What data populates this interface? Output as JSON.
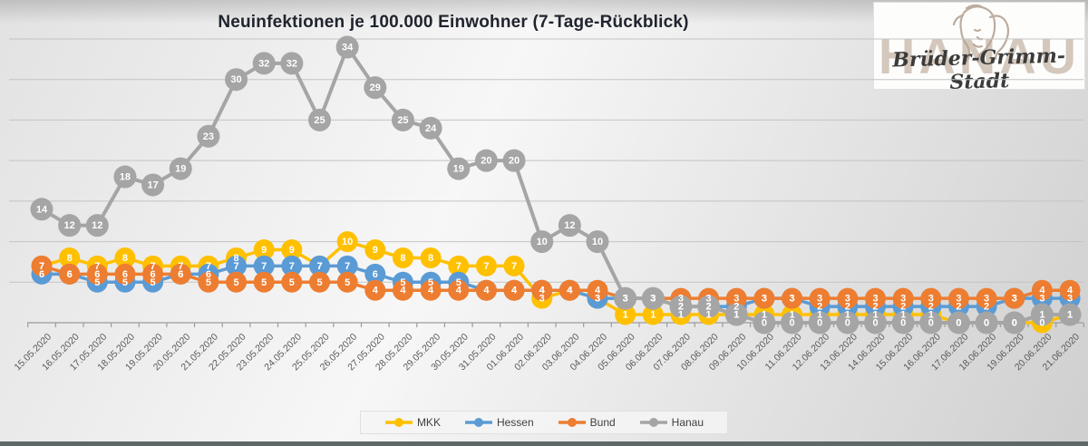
{
  "title": "Neuinfektionen je 100.000 Einwohner (7-Tage-Rückblick)",
  "logo": {
    "watermark": "HANAU",
    "script": "Brüder-Grimm-Stadt"
  },
  "colors": {
    "mkk": "#FFC000",
    "hessen": "#5B9BD5",
    "bund": "#ED7D31",
    "hanau": "#A5A5A5",
    "gridline": "#c3c3c3",
    "axis": "#9c9c9c",
    "label_text": "#ffffff",
    "tick_text": "#595959",
    "bottom_bar": "#5d6867"
  },
  "chart_data": {
    "type": "line",
    "title": "Neuinfektionen je 100.000 Einwohner (7-Tage-Rückblick)",
    "x": [
      "15.05.2020",
      "16.05.2020",
      "17.05.2020",
      "18.05.2020",
      "19.05.2020",
      "20.05.2020",
      "21.05.2020",
      "22.05.2020",
      "23.05.2020",
      "24.05.2020",
      "25.05.2020",
      "26.05.2020",
      "27.05.2020",
      "28.05.2020",
      "29.05.2020",
      "30.05.2020",
      "31.05.2020",
      "01.06.2020",
      "02.06.2020",
      "03.06.2020",
      "04.06.2020",
      "05.06.2020",
      "06.06.2020",
      "07.06.2020",
      "08.06.2020",
      "09.06.2020",
      "10.06.2020",
      "11.06.2020",
      "12.06.2020",
      "13.06.2020",
      "14.06.2020",
      "15.06.2020",
      "16.06.2020",
      "17.06.2020",
      "18.06.2020",
      "19.06.2020",
      "20.06.2020",
      "21.06.2020"
    ],
    "series": [
      {
        "name": "MKK",
        "color": "#FFC000",
        "values": [
          7,
          8,
          7,
          8,
          7,
          7,
          7,
          8,
          9,
          9,
          7,
          10,
          9,
          8,
          8,
          7,
          7,
          7,
          3,
          4,
          3,
          1,
          1,
          1,
          1,
          1,
          1,
          1,
          1,
          1,
          1,
          1,
          1,
          0,
          0,
          0,
          0,
          1
        ]
      },
      {
        "name": "Hessen",
        "color": "#5B9BD5",
        "values": [
          6,
          6,
          5,
          5,
          5,
          6,
          6,
          7,
          7,
          7,
          7,
          7,
          6,
          5,
          5,
          5,
          4,
          4,
          4,
          4,
          3,
          3,
          3,
          2,
          2,
          2,
          3,
          3,
          2,
          2,
          2,
          2,
          2,
          2,
          2,
          3,
          3,
          3
        ]
      },
      {
        "name": "Bund",
        "color": "#ED7D31",
        "values": [
          7,
          6,
          6,
          6,
          6,
          6,
          5,
          5,
          5,
          5,
          5,
          5,
          4,
          4,
          4,
          4,
          4,
          4,
          4,
          4,
          4,
          3,
          3,
          3,
          3,
          3,
          3,
          3,
          3,
          3,
          3,
          3,
          3,
          3,
          3,
          3,
          4,
          4
        ]
      },
      {
        "name": "Hanau",
        "color": "#A5A5A5",
        "values": [
          14,
          12,
          12,
          18,
          17,
          19,
          23,
          30,
          32,
          32,
          25,
          34,
          29,
          25,
          24,
          19,
          20,
          20,
          10,
          12,
          10,
          3,
          3,
          2,
          2,
          1,
          0,
          0,
          0,
          0,
          0,
          0,
          0,
          0,
          0,
          0,
          1,
          1
        ]
      }
    ],
    "ylim": [
      0,
      35
    ],
    "gridline_step": 5,
    "y_axis_labels": false,
    "data_labels": true,
    "legend_position": "bottom"
  },
  "legend": {
    "items": [
      "MKK",
      "Hessen",
      "Bund",
      "Hanau"
    ]
  }
}
